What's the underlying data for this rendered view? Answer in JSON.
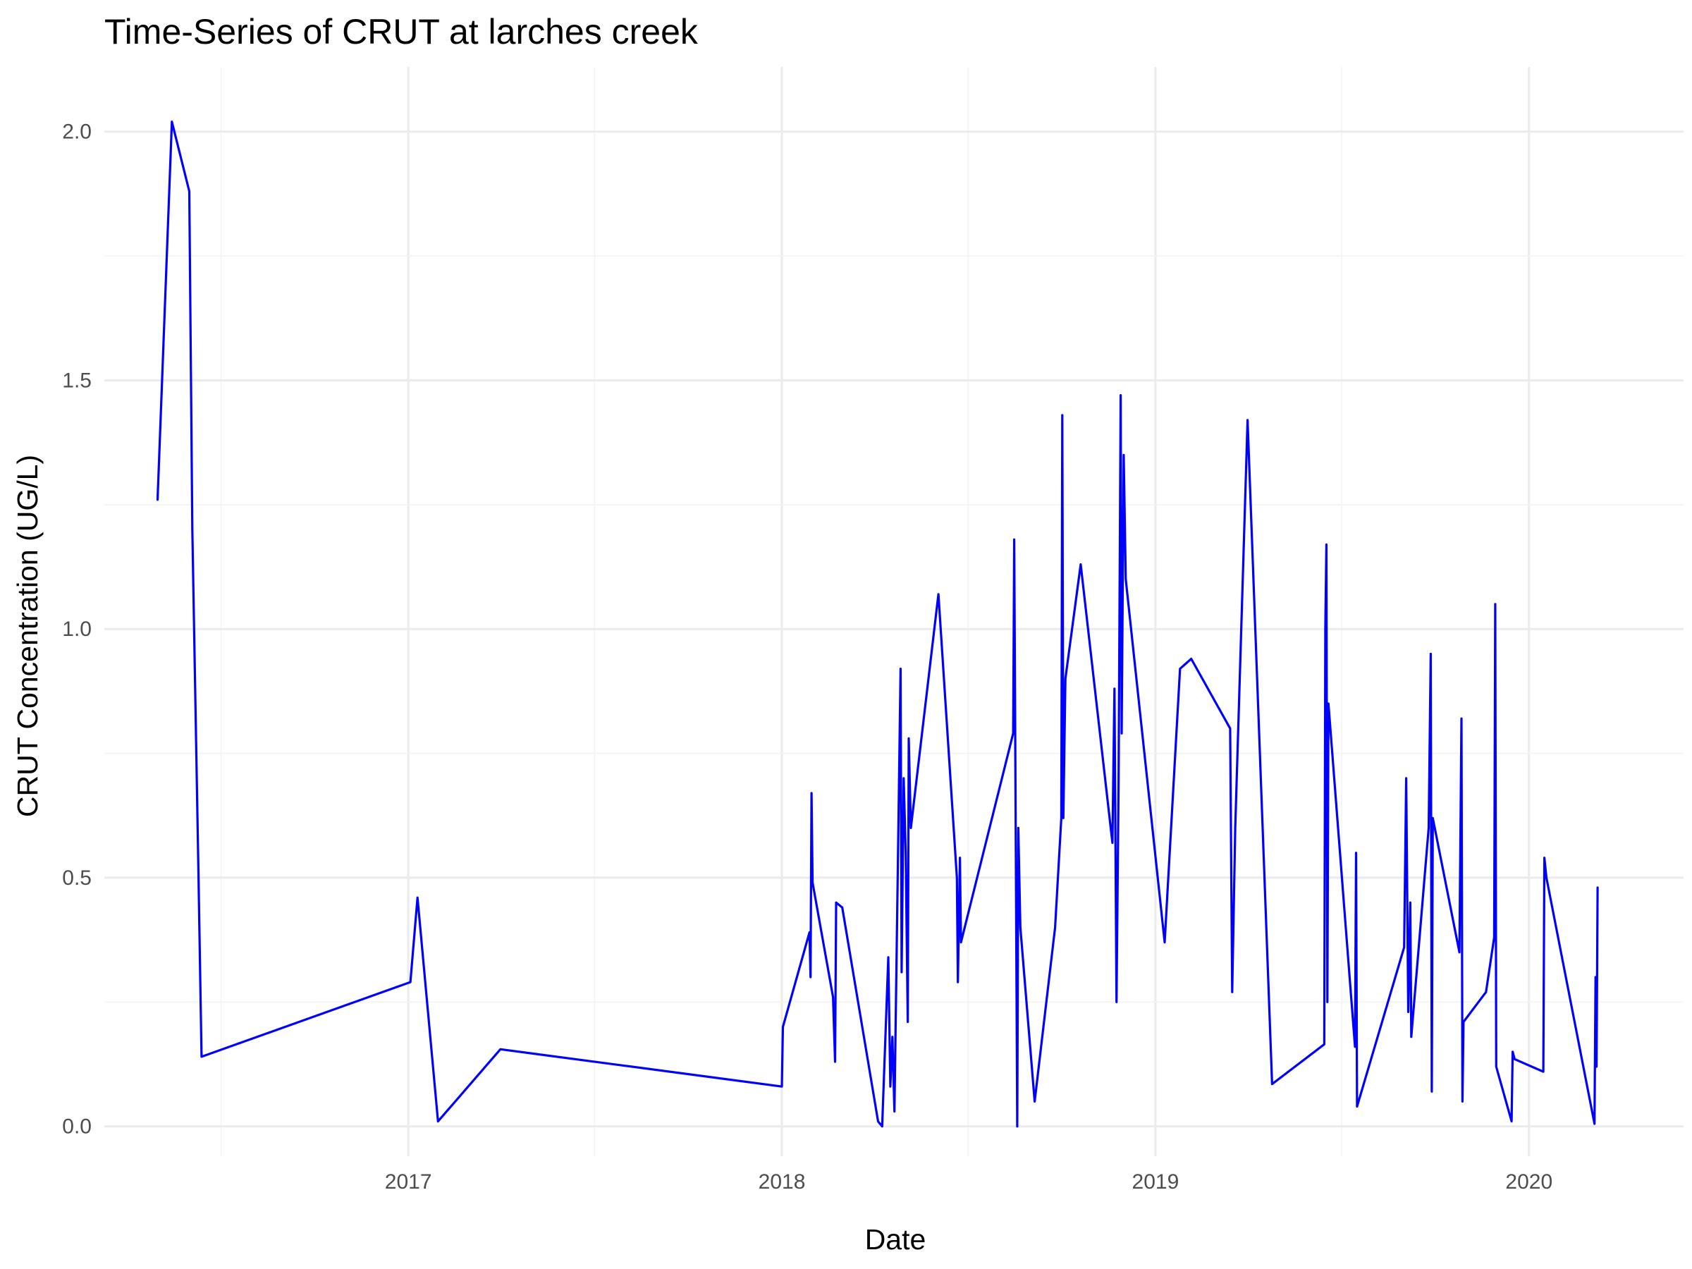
{
  "chart_data": {
    "type": "line",
    "title": "Time-Series of CRUT at larches creek",
    "xlabel": "Date",
    "ylabel": "CRUT Concentration (UG/L)",
    "x_ticks": [
      "2017",
      "2018",
      "2019",
      "2020"
    ],
    "y_ticks": [
      "0.0",
      "0.5",
      "1.0",
      "1.5",
      "2.0"
    ],
    "xlim": [
      "2016-03-10",
      "2020-05-31"
    ],
    "ylim": [
      -0.06,
      2.13
    ],
    "grid": true,
    "legend": "none",
    "series": [
      {
        "color": "#0000ff",
        "points": [
          [
            "2016-05-01",
            1.26
          ],
          [
            "2016-05-15",
            2.02
          ],
          [
            "2016-06-01",
            1.88
          ],
          [
            "2016-06-04",
            1.2
          ],
          [
            "2016-06-10",
            0.5
          ],
          [
            "2016-06-13",
            0.14
          ],
          [
            "2017-01-03",
            0.29
          ],
          [
            "2017-01-10",
            0.46
          ],
          [
            "2017-01-30",
            0.01
          ],
          [
            "2017-04-01",
            0.155
          ],
          [
            "2018-01-01",
            0.08
          ],
          [
            "2018-01-02",
            0.2
          ],
          [
            "2018-01-28",
            0.39
          ],
          [
            "2018-01-29",
            0.3
          ],
          [
            "2018-01-30",
            0.67
          ],
          [
            "2018-01-31",
            0.49
          ],
          [
            "2018-02-20",
            0.26
          ],
          [
            "2018-02-22",
            0.13
          ],
          [
            "2018-02-23",
            0.45
          ],
          [
            "2018-03-01",
            0.44
          ],
          [
            "2018-04-05",
            0.01
          ],
          [
            "2018-04-09",
            0.0
          ],
          [
            "2018-04-15",
            0.34
          ],
          [
            "2018-04-17",
            0.08
          ],
          [
            "2018-04-19",
            0.18
          ],
          [
            "2018-04-21",
            0.03
          ],
          [
            "2018-04-25",
            0.62
          ],
          [
            "2018-04-27",
            0.92
          ],
          [
            "2018-04-28",
            0.31
          ],
          [
            "2018-04-30",
            0.7
          ],
          [
            "2018-05-02",
            0.55
          ],
          [
            "2018-05-04",
            0.21
          ],
          [
            "2018-05-05",
            0.78
          ],
          [
            "2018-05-07",
            0.6
          ],
          [
            "2018-06-03",
            1.07
          ],
          [
            "2018-06-21",
            0.5
          ],
          [
            "2018-06-22",
            0.29
          ],
          [
            "2018-06-24",
            0.54
          ],
          [
            "2018-06-25",
            0.37
          ],
          [
            "2018-08-15",
            0.79
          ],
          [
            "2018-08-16",
            1.18
          ],
          [
            "2018-08-19",
            0.0
          ],
          [
            "2018-08-20",
            0.6
          ],
          [
            "2018-08-22",
            0.4
          ],
          [
            "2018-09-05",
            0.05
          ],
          [
            "2018-09-25",
            0.4
          ],
          [
            "2018-10-01",
            0.62
          ],
          [
            "2018-10-02",
            1.43
          ],
          [
            "2018-10-03",
            0.62
          ],
          [
            "2018-10-05",
            0.9
          ],
          [
            "2018-10-20",
            1.13
          ],
          [
            "2018-11-20",
            0.57
          ],
          [
            "2018-11-22",
            0.88
          ],
          [
            "2018-11-24",
            0.25
          ],
          [
            "2018-11-26",
            0.7
          ],
          [
            "2018-11-28",
            1.47
          ],
          [
            "2018-11-29",
            0.79
          ],
          [
            "2018-12-01",
            1.35
          ],
          [
            "2018-12-03",
            1.1
          ],
          [
            "2019-01-10",
            0.37
          ],
          [
            "2019-01-25",
            0.92
          ],
          [
            "2019-02-05",
            0.94
          ],
          [
            "2019-03-15",
            0.8
          ],
          [
            "2019-03-17",
            0.27
          ],
          [
            "2019-03-20",
            0.6
          ],
          [
            "2019-04-01",
            1.42
          ],
          [
            "2019-04-25",
            0.085
          ],
          [
            "2019-06-15",
            0.165
          ],
          [
            "2019-06-16",
            1.0
          ],
          [
            "2019-06-17",
            1.17
          ],
          [
            "2019-06-18",
            0.25
          ],
          [
            "2019-06-19",
            0.85
          ],
          [
            "2019-07-15",
            0.16
          ],
          [
            "2019-07-16",
            0.55
          ],
          [
            "2019-07-17",
            0.04
          ],
          [
            "2019-09-01",
            0.36
          ],
          [
            "2019-09-03",
            0.7
          ],
          [
            "2019-09-05",
            0.23
          ],
          [
            "2019-09-07",
            0.45
          ],
          [
            "2019-09-08",
            0.18
          ],
          [
            "2019-09-25",
            0.6
          ],
          [
            "2019-09-27",
            0.95
          ],
          [
            "2019-09-28",
            0.07
          ],
          [
            "2019-09-29",
            0.62
          ],
          [
            "2019-10-25",
            0.35
          ],
          [
            "2019-10-27",
            0.82
          ],
          [
            "2019-10-28",
            0.05
          ],
          [
            "2019-10-29",
            0.21
          ],
          [
            "2019-11-20",
            0.27
          ],
          [
            "2019-11-28",
            0.38
          ],
          [
            "2019-11-29",
            1.05
          ],
          [
            "2019-11-30",
            0.12
          ],
          [
            "2019-12-15",
            0.01
          ],
          [
            "2019-12-16",
            0.15
          ],
          [
            "2019-12-18",
            0.135
          ],
          [
            "2020-01-15",
            0.11
          ],
          [
            "2020-01-16",
            0.54
          ],
          [
            "2020-01-18",
            0.5
          ],
          [
            "2020-03-05",
            0.005
          ],
          [
            "2020-03-06",
            0.3
          ],
          [
            "2020-03-07",
            0.12
          ],
          [
            "2020-03-08",
            0.48
          ]
        ]
      }
    ]
  }
}
